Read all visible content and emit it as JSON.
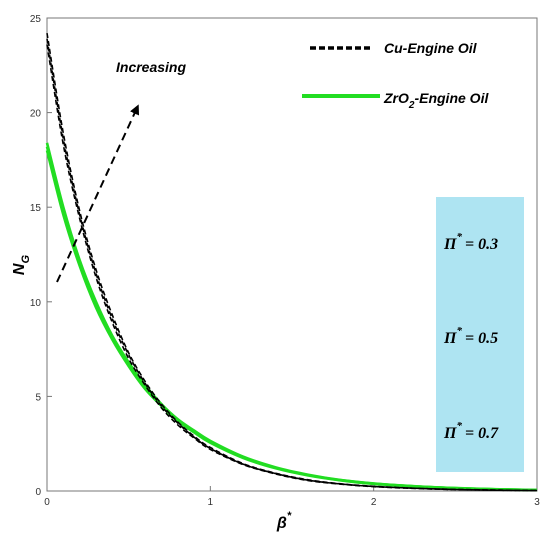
{
  "chart_data": {
    "type": "line",
    "xlabel": "β",
    "xlabel_sup": "*",
    "ylabel": "N",
    "ylabel_sub": "G",
    "xlim": [
      0,
      3
    ],
    "ylim": [
      0,
      25
    ],
    "xticks": [
      "0",
      "1",
      "2",
      "3"
    ],
    "yticks": [
      "0",
      "5",
      "10",
      "15",
      "20",
      "25"
    ],
    "grid": false,
    "legend_position": "top-right",
    "legend": [
      {
        "label": "Cu-Engine Oil",
        "style": "dashed",
        "color": "#000000"
      },
      {
        "label_prefix": "ZrO",
        "label_sub": "2",
        "label_suffix": "-Engine Oil",
        "style": "solid",
        "color": "#22dd22"
      }
    ],
    "annotation": "Increasing",
    "parameter_box": {
      "color": "#aee4f2",
      "symbol": "Π",
      "sup": "*",
      "values": [
        "= 0.3",
        "= 0.5",
        "= 0.7"
      ]
    },
    "series": [
      {
        "fluid": "Cu",
        "pi": 0.3,
        "color": "#000000",
        "style": "dashed",
        "x": [
          0,
          0.1,
          0.2,
          0.3,
          0.4,
          0.5,
          0.6,
          0.7,
          0.8,
          0.9,
          1.0,
          1.2,
          1.4,
          1.6,
          1.8,
          2.0,
          2.3,
          2.6,
          3.0
        ],
        "y": [
          23.6,
          18.3,
          14.4,
          11.3,
          8.9,
          7.0,
          5.6,
          4.4,
          3.5,
          2.8,
          2.2,
          1.4,
          0.9,
          0.55,
          0.36,
          0.23,
          0.12,
          0.06,
          0.02
        ]
      },
      {
        "fluid": "Cu",
        "pi": 0.5,
        "color": "#000000",
        "style": "dashed",
        "x": [
          0,
          0.1,
          0.2,
          0.3,
          0.4,
          0.5,
          0.6,
          0.7,
          0.8,
          0.9,
          1.0,
          1.2,
          1.4,
          1.6,
          1.8,
          2.0,
          2.3,
          2.6,
          3.0
        ],
        "y": [
          23.9,
          18.6,
          14.6,
          11.5,
          9.1,
          7.2,
          5.7,
          4.5,
          3.6,
          2.85,
          2.25,
          1.42,
          0.92,
          0.57,
          0.37,
          0.24,
          0.13,
          0.06,
          0.02
        ]
      },
      {
        "fluid": "Cu",
        "pi": 0.7,
        "color": "#000000",
        "style": "dashed",
        "x": [
          0,
          0.1,
          0.2,
          0.3,
          0.4,
          0.5,
          0.6,
          0.7,
          0.8,
          0.9,
          1.0,
          1.2,
          1.4,
          1.6,
          1.8,
          2.0,
          2.3,
          2.6,
          3.0
        ],
        "y": [
          24.2,
          18.9,
          14.8,
          11.7,
          9.3,
          7.3,
          5.8,
          4.6,
          3.65,
          2.9,
          2.3,
          1.45,
          0.94,
          0.59,
          0.38,
          0.25,
          0.13,
          0.07,
          0.02
        ]
      },
      {
        "fluid": "ZrO2",
        "pi": 0.3,
        "color": "#22dd22",
        "style": "solid",
        "x": [
          0,
          0.1,
          0.2,
          0.3,
          0.4,
          0.5,
          0.6,
          0.7,
          0.8,
          0.9,
          1.0,
          1.2,
          1.4,
          1.6,
          1.8,
          2.0,
          2.3,
          2.6,
          3.0
        ],
        "y": [
          18.0,
          14.6,
          11.9,
          9.7,
          8.0,
          6.6,
          5.4,
          4.5,
          3.7,
          3.1,
          2.55,
          1.75,
          1.2,
          0.82,
          0.56,
          0.38,
          0.22,
          0.12,
          0.05
        ]
      },
      {
        "fluid": "ZrO2",
        "pi": 0.5,
        "color": "#22dd22",
        "style": "solid",
        "x": [
          0,
          0.1,
          0.2,
          0.3,
          0.4,
          0.5,
          0.6,
          0.7,
          0.8,
          0.9,
          1.0,
          1.2,
          1.4,
          1.6,
          1.8,
          2.0,
          2.3,
          2.6,
          3.0
        ],
        "y": [
          18.2,
          14.8,
          12.05,
          9.85,
          8.1,
          6.7,
          5.5,
          4.55,
          3.75,
          3.15,
          2.6,
          1.78,
          1.22,
          0.84,
          0.57,
          0.39,
          0.22,
          0.12,
          0.05
        ]
      },
      {
        "fluid": "ZrO2",
        "pi": 0.7,
        "color": "#22dd22",
        "style": "solid",
        "x": [
          0,
          0.1,
          0.2,
          0.3,
          0.4,
          0.5,
          0.6,
          0.7,
          0.8,
          0.9,
          1.0,
          1.2,
          1.4,
          1.6,
          1.8,
          2.0,
          2.3,
          2.6,
          3.0
        ],
        "y": [
          18.4,
          15.0,
          12.2,
          10.0,
          8.2,
          6.8,
          5.6,
          4.6,
          3.8,
          3.2,
          2.65,
          1.82,
          1.25,
          0.86,
          0.58,
          0.4,
          0.23,
          0.13,
          0.05
        ]
      }
    ]
  }
}
